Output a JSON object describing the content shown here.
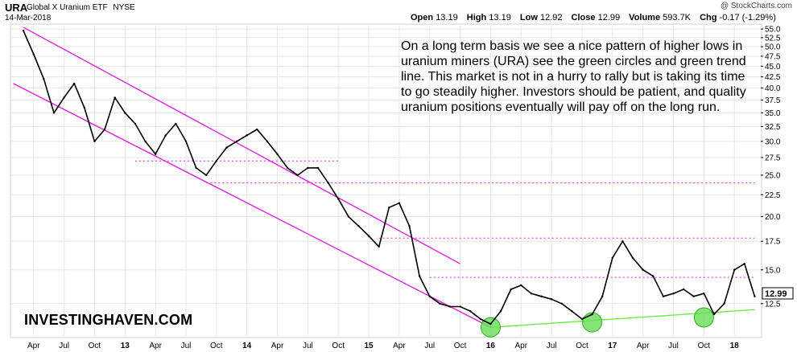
{
  "header": {
    "symbol": "URA",
    "name": "Global X Uranium ETF",
    "exchange": "NYSE",
    "date": "14-Mar-2018",
    "copyright": "@ StockCharts.com",
    "open_label": "Open",
    "open": "13.19",
    "high_label": "High",
    "high": "13.19",
    "low_label": "Low",
    "low": "12.92",
    "close_label": "Close",
    "close": "12.99",
    "volume_label": "Volume",
    "volume": "593.7K",
    "chg_label": "Chg",
    "chg": "-0.17 (-1.29%)",
    "last_price_tag": "12.99"
  },
  "annotation": "On a long term basis we see a nice pattern of higher lows in uranium miners (URA) see the green circles and green trend line. This market is not in a hurry to rally but is taking its time to go steadily higher. Investors should be patient, and quality uranium positions eventually will pay off on the long run.",
  "brand": "INVESTINGHAVEN.COM",
  "colors": {
    "price": "#000000",
    "channel": "#e020e0",
    "support_dotted": "#e020e0",
    "trendline": "#66ee44",
    "circle_fill": "#66dd55",
    "grid": "#e6e6e6"
  },
  "chart_data": {
    "type": "line",
    "title": "URA Global X Uranium ETF NYSE",
    "y_scale": "log",
    "ylim": [
      10.5,
      56
    ],
    "y_ticks": [
      "55.0",
      "52.5",
      "50.0",
      "47.5",
      "45.0",
      "42.5",
      "40.0",
      "37.5",
      "35.0",
      "32.5",
      "30.0",
      "27.5",
      "25.0",
      "22.5",
      "20.0",
      "17.5",
      "15.0",
      "12.5"
    ],
    "x_tick_labels": [
      "Apr",
      "Jul",
      "Oct",
      "13",
      "Apr",
      "Jul",
      "Oct",
      "14",
      "Apr",
      "Jul",
      "Oct",
      "15",
      "Apr",
      "Jul",
      "Oct",
      "16",
      "Apr",
      "Jul",
      "Oct",
      "17",
      "Apr",
      "Jul",
      "Oct",
      "18"
    ],
    "series": [
      {
        "x": [
          "2012-03",
          "2012-04",
          "2012-05",
          "2012-06",
          "2012-07",
          "2012-08",
          "2012-09",
          "2012-10",
          "2012-11",
          "2012-12",
          "2013-01",
          "2013-02",
          "2013-03",
          "2013-04",
          "2013-05",
          "2013-06",
          "2013-07",
          "2013-08",
          "2013-09",
          "2013-10",
          "2013-11",
          "2013-12",
          "2014-01",
          "2014-02",
          "2014-03",
          "2014-04",
          "2014-05",
          "2014-06",
          "2014-07",
          "2014-08",
          "2014-09",
          "2014-10",
          "2014-11",
          "2014-12",
          "2015-01",
          "2015-02",
          "2015-03",
          "2015-04",
          "2015-05",
          "2015-06",
          "2015-07",
          "2015-08",
          "2015-09",
          "2015-10",
          "2015-11",
          "2015-12",
          "2016-01",
          "2016-02",
          "2016-03",
          "2016-04",
          "2016-05",
          "2016-06",
          "2016-07",
          "2016-08",
          "2016-09",
          "2016-10",
          "2016-11",
          "2016-12",
          "2017-01",
          "2017-02",
          "2017-03",
          "2017-04",
          "2017-05",
          "2017-06",
          "2017-07",
          "2017-08",
          "2017-09",
          "2017-10",
          "2017-11",
          "2017-12",
          "2018-01",
          "2018-02",
          "2018-03"
        ],
        "values": [
          54.5,
          48,
          42,
          35,
          38,
          41,
          36,
          30,
          32,
          38,
          35,
          33,
          30,
          28,
          31,
          33,
          30,
          26,
          25,
          27,
          29,
          30,
          31,
          32,
          30,
          28,
          26,
          25,
          26,
          26,
          24,
          22,
          20,
          19,
          18,
          17,
          21,
          21.5,
          19,
          14.5,
          13,
          12.5,
          12.3,
          12.3,
          12,
          11.5,
          11.2,
          12,
          13.5,
          13.8,
          13.2,
          13,
          12.8,
          12.5,
          12,
          11.5,
          11.8,
          13,
          16,
          17.5,
          16,
          15,
          14.5,
          13,
          13.2,
          13.5,
          13,
          13.2,
          11.8,
          12.5,
          15,
          15.5,
          13
        ]
      }
    ],
    "lines": [
      {
        "kind": "channel-upper",
        "from": [
          "2012-03",
          55.5
        ],
        "to": [
          "2015-10",
          15.5
        ]
      },
      {
        "kind": "channel-lower",
        "from": [
          "2012-02",
          41
        ],
        "to": [
          "2016-01",
          11.0
        ]
      },
      {
        "kind": "support-trendline",
        "from": [
          "2016-01",
          11.0
        ],
        "to": [
          "2018-03",
          12.1
        ]
      }
    ],
    "horizontal_levels": [
      {
        "value": 27.0,
        "from": "2013-02",
        "to": "2014-10"
      },
      {
        "value": 24.0,
        "from": "2013-09",
        "to": "2018-03"
      },
      {
        "value": 17.8,
        "from": "2015-02",
        "to": "2018-03"
      },
      {
        "value": 14.4,
        "from": "2015-07",
        "to": "2018-03"
      }
    ],
    "circles": [
      {
        "date": "2016-01",
        "value": 11.0
      },
      {
        "date": "2016-11",
        "value": 11.3
      },
      {
        "date": "2017-10",
        "value": 11.6
      }
    ],
    "grid": true
  }
}
